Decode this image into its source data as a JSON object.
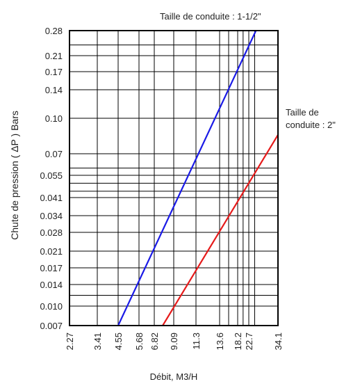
{
  "chart_data": {
    "type": "line",
    "xlabel": "Débit, M3/H",
    "ylabel": "Chute de pression ( ΔP )  Bars",
    "x_ticks": [
      "2.27",
      "3.41",
      "4.55",
      "5.68",
      "6.82",
      "9.09",
      "11.3",
      "13.6",
      "18.2",
      "22.7",
      "34.1"
    ],
    "y_ticks": [
      "0.28",
      "0.21",
      "0.17",
      "0.14",
      "0.10",
      "0.07",
      "0.055",
      "0.041",
      "0.034",
      "0.028",
      "0.021",
      "0.017",
      "0.014",
      "0.010",
      "0.007"
    ],
    "xlim": [
      2.27,
      34.1
    ],
    "ylim": [
      0.007,
      0.28
    ],
    "grid": true,
    "series": [
      {
        "name": "Taille de conduite : 1-1/2\"",
        "color": "#1a1ae6",
        "points": [
          [
            4.55,
            0.007
          ],
          [
            25.5,
            0.28
          ]
        ]
      },
      {
        "name": "Taille de conduite : 2\"",
        "color": "#e61a1a",
        "points": [
          [
            7.8,
            0.007
          ],
          [
            34.1,
            0.086
          ]
        ]
      }
    ]
  }
}
